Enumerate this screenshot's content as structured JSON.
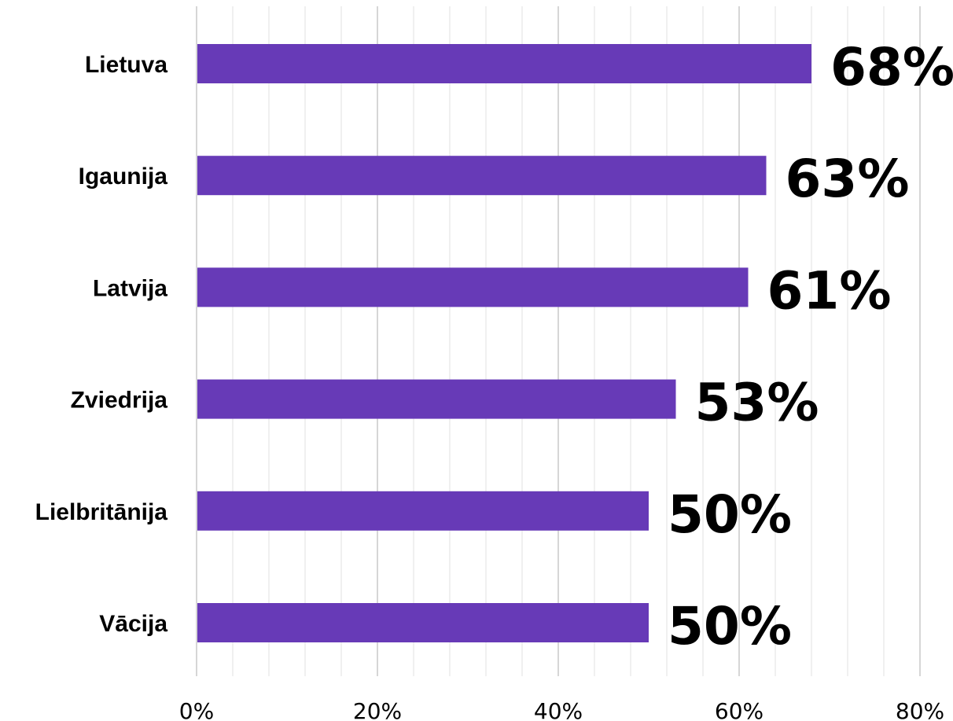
{
  "chart_data": {
    "type": "bar",
    "orientation": "horizontal",
    "title": "",
    "xlabel": "",
    "ylabel": "",
    "categories": [
      "Lietuva",
      "Igaunija",
      "Latvija",
      "Zviedrija",
      "Lielbritānija",
      "Vācija"
    ],
    "values": [
      68,
      63,
      61,
      53,
      50,
      50
    ],
    "value_labels": [
      "68%",
      "63%",
      "61%",
      "53%",
      "50%",
      "50%"
    ],
    "xlim": [
      0,
      80
    ],
    "x_ticks": [
      0,
      20,
      40,
      60,
      80
    ],
    "x_tick_labels": [
      "0%",
      "20%",
      "40%",
      "60%",
      "80%"
    ],
    "minor_grid_step": 4,
    "grid": true,
    "legend": "none",
    "bar_color": "#673ab7"
  }
}
